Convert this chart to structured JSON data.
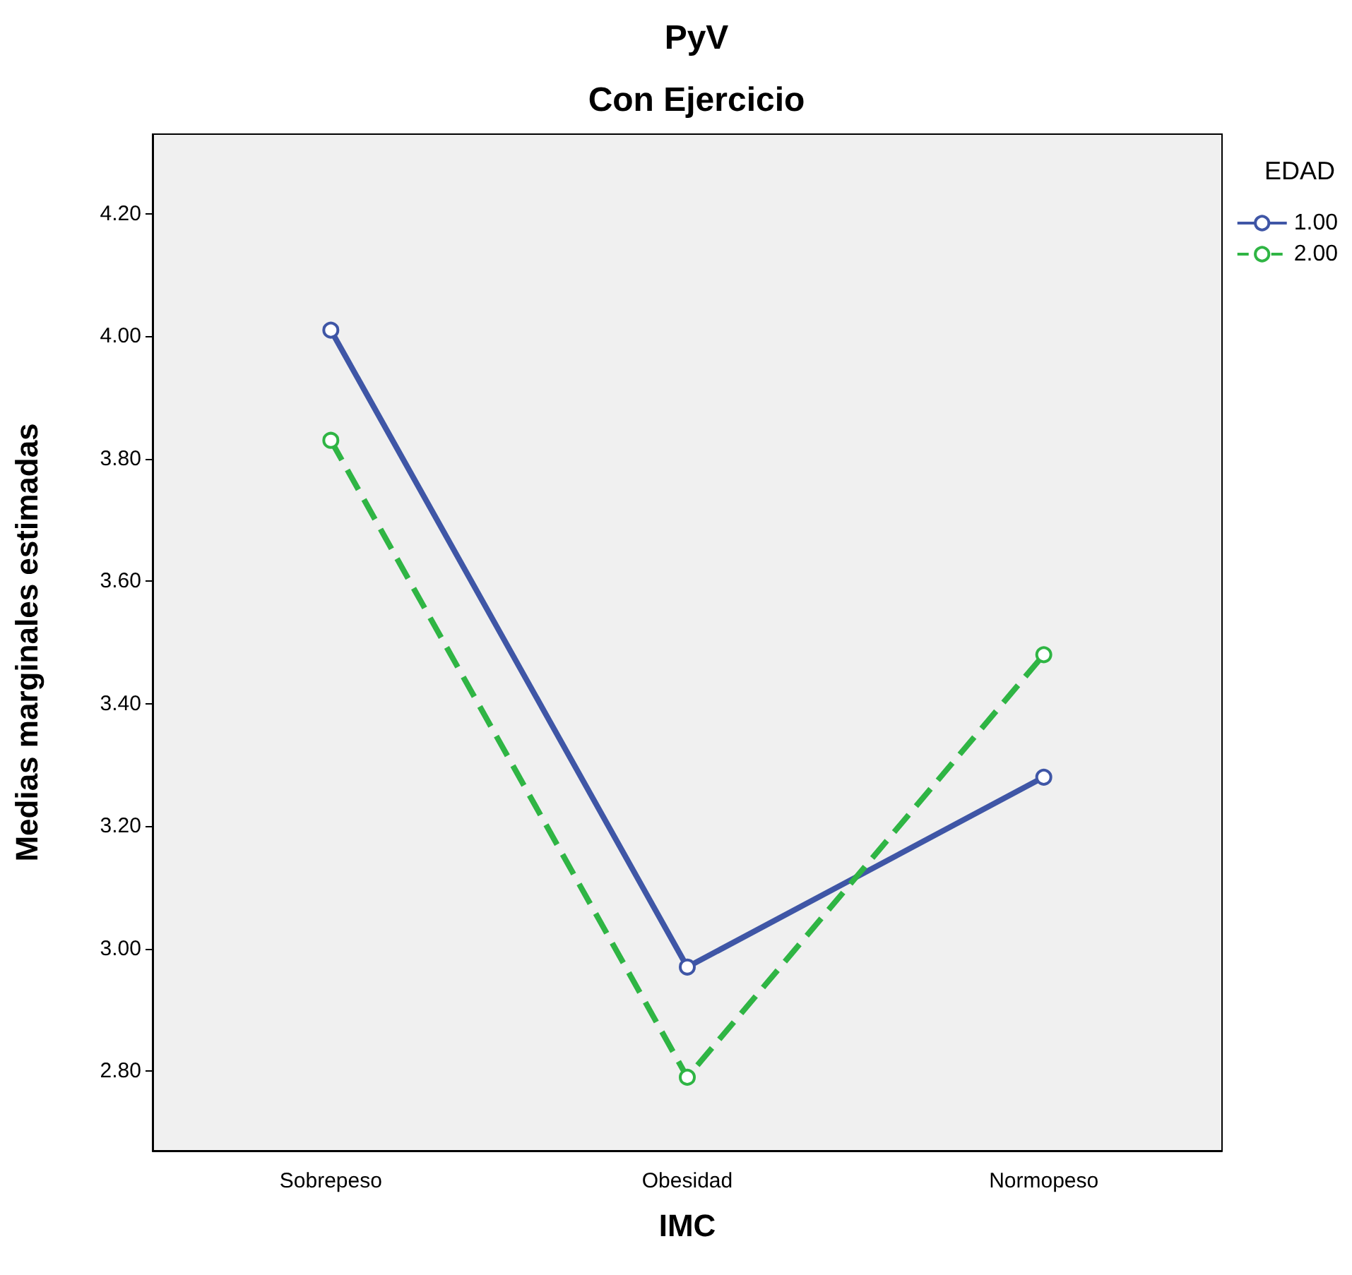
{
  "chart_data": {
    "type": "line",
    "title": "PyV",
    "subtitle": "Con Ejercicio",
    "xlabel": "IMC",
    "ylabel": "Medias marginales estimadas",
    "legend_title": "EDAD",
    "categories": [
      "Sobrepeso",
      "Obesidad",
      "Normopeso"
    ],
    "series": [
      {
        "name": "1.00",
        "color": "#3f56a6",
        "values": [
          4.01,
          2.97,
          3.28
        ],
        "line_style": "solid"
      },
      {
        "name": "2.00",
        "color": "#2fb544",
        "values": [
          3.83,
          2.79,
          3.48
        ],
        "line_style": "dashed"
      }
    ],
    "ylim": [
      2.67,
      4.33
    ],
    "yticks": [
      {
        "value": 2.8,
        "label": "2.80"
      },
      {
        "value": 3.0,
        "label": "3.00"
      },
      {
        "value": 3.2,
        "label": "3.20"
      },
      {
        "value": 3.4,
        "label": "3.40"
      },
      {
        "value": 3.6,
        "label": "3.60"
      },
      {
        "value": 3.8,
        "label": "3.80"
      },
      {
        "value": 4.0,
        "label": "4.00"
      },
      {
        "value": 4.2,
        "label": "4.20"
      }
    ],
    "grid": false,
    "legend": "top right",
    "marker": "circle"
  }
}
